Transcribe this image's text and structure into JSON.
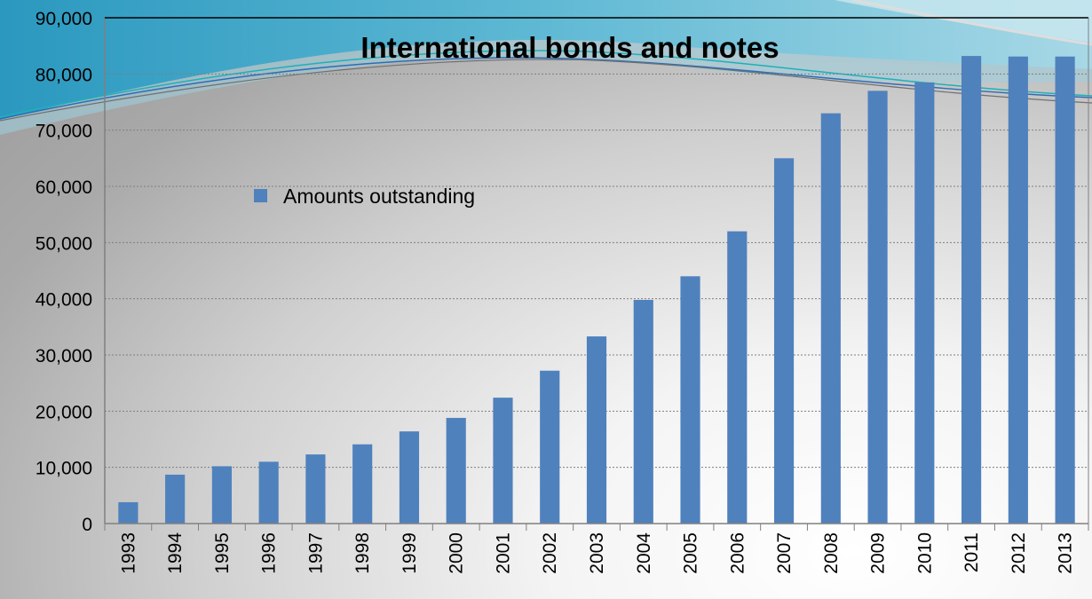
{
  "chart_data": {
    "type": "bar",
    "title": "International bonds and notes",
    "xlabel": "",
    "ylabel": "",
    "categories": [
      "1993",
      "1994",
      "1995",
      "1996",
      "1997",
      "1998",
      "1999",
      "2000",
      "2001",
      "2002",
      "2003",
      "2004",
      "2005",
      "2006",
      "2007",
      "2008",
      "2009",
      "2010",
      "2011",
      "2012",
      "2013"
    ],
    "series": [
      {
        "name": "Amounts outstanding",
        "values": [
          3800,
          8700,
          10200,
          11000,
          12300,
          14100,
          16400,
          18800,
          22400,
          27200,
          33300,
          39800,
          44000,
          52000,
          65000,
          73000,
          77000,
          78500,
          83200,
          83100,
          83100
        ]
      }
    ],
    "ylim": [
      0,
      90000
    ],
    "yticks": [
      "0",
      "10,000",
      "20,000",
      "30,000",
      "40,000",
      "50,000",
      "60,000",
      "70,000",
      "80,000",
      "90,000"
    ],
    "grid": true,
    "legend_position": "upper-left inside plot",
    "colors": {
      "bar": "#4f81bd",
      "grid": "#7f7f7f",
      "background_swoosh_teal": "#3aa6c6",
      "background_swoosh_light": "#a7d8e6"
    }
  }
}
